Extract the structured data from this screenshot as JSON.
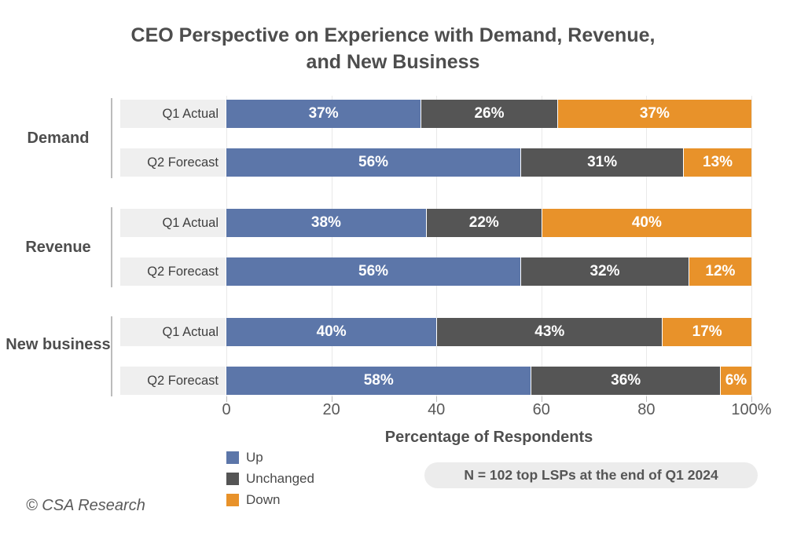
{
  "title_line1": "CEO Perspective on Experience with Demand, Revenue,",
  "title_line2": "and New Business",
  "chart_data": {
    "type": "bar",
    "stacked": true,
    "orientation": "horizontal",
    "title": "CEO Perspective on Experience with Demand, Revenue, and New Business",
    "xlabel": "Percentage of Respondents",
    "xlim": [
      0,
      100
    ],
    "grid": "vertical",
    "legend_position": "bottom-left",
    "series": [
      {
        "name": "Up",
        "color": "#5c76a9"
      },
      {
        "name": "Unchanged",
        "color": "#555555"
      },
      {
        "name": "Down",
        "color": "#e8922a"
      }
    ],
    "x_ticks": [
      {
        "value": 0,
        "label": "0"
      },
      {
        "value": 20,
        "label": "20"
      },
      {
        "value": 40,
        "label": "40"
      },
      {
        "value": 60,
        "label": "60"
      },
      {
        "value": 80,
        "label": "80"
      },
      {
        "value": 100,
        "label": "100%"
      }
    ],
    "groups": [
      {
        "label": "Demand",
        "rows": [
          {
            "label": "Q1 Actual",
            "values": [
              37,
              26,
              37
            ],
            "labels": [
              "37%",
              "26%",
              "37%"
            ]
          },
          {
            "label": "Q2 Forecast",
            "values": [
              56,
              31,
              13
            ],
            "labels": [
              "56%",
              "31%",
              "13%"
            ]
          }
        ]
      },
      {
        "label": "Revenue",
        "rows": [
          {
            "label": "Q1 Actual",
            "values": [
              38,
              22,
              40
            ],
            "labels": [
              "38%",
              "22%",
              "40%"
            ]
          },
          {
            "label": "Q2 Forecast",
            "values": [
              56,
              32,
              12
            ],
            "labels": [
              "56%",
              "32%",
              "12%"
            ]
          }
        ]
      },
      {
        "label": "New business",
        "rows": [
          {
            "label": "Q1 Actual",
            "values": [
              40,
              43,
              17
            ],
            "labels": [
              "40%",
              "43%",
              "17%"
            ]
          },
          {
            "label": "Q2 Forecast",
            "values": [
              58,
              36,
              6
            ],
            "labels": [
              "58%",
              "36%",
              "6%"
            ]
          }
        ]
      }
    ]
  },
  "legend": [
    {
      "label": "Up",
      "color": "#5c76a9"
    },
    {
      "label": "Unchanged",
      "color": "#555555"
    },
    {
      "label": "Down",
      "color": "#e8922a"
    }
  ],
  "note": "N = 102 top LSPs at the end of Q1 2024",
  "footer": "© CSA Research",
  "colors": {
    "up": "#5c76a9",
    "unchanged": "#555555",
    "down": "#e8922a",
    "row_label_bg": "#efefef",
    "note_bg": "#ececec",
    "text_dark": "#4d4d4d",
    "axis_text": "#595959",
    "gridline": "#e9e9e9"
  }
}
